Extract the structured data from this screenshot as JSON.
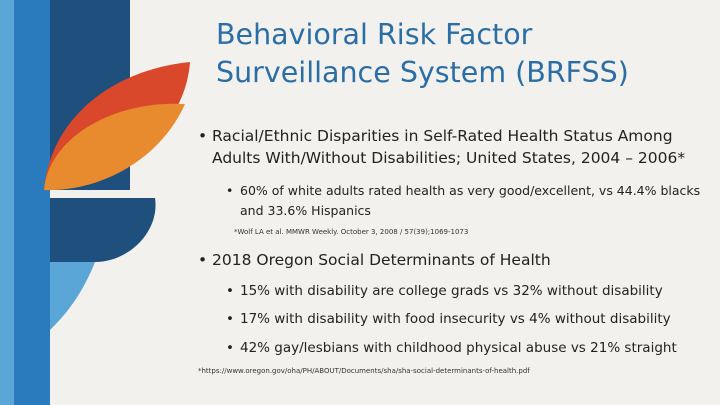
{
  "title": "Behavioral Risk Factor Surveillance System (BRFSS)",
  "colors": {
    "title": "#2b6ea6",
    "dark_blue": "#1f4f7d",
    "mid_blue": "#2a7bbd",
    "light_blue": "#5aa6d6",
    "red": "#d9482b",
    "orange": "#e88a2e",
    "background": "#f3f1ee"
  },
  "section1": {
    "heading": "Racial/Ethnic Disparities in Self-Rated Health Status Among Adults With/Without Disabilities; United States, 2004 – 2006*",
    "points": [
      "60% of white adults rated health as very good/excellent, vs 44.4% blacks and 33.6% Hispanics"
    ],
    "citation": "*Wolf LA et al. MMWR Weekly. October 3, 2008 / 57(39);1069-1073"
  },
  "section2": {
    "heading": "2018 Oregon Social Determinants of Health",
    "points": [
      "15% with disability are college grads vs 32% without disability",
      "17% with disability with food insecurity vs 4% without disability",
      "42% gay/lesbians with childhood physical abuse  vs 21% straight"
    ],
    "citation": "*https://www.oregon.gov/oha/PH/ABOUT/Documents/sha/sha-social-determinants-of-health.pdf"
  }
}
